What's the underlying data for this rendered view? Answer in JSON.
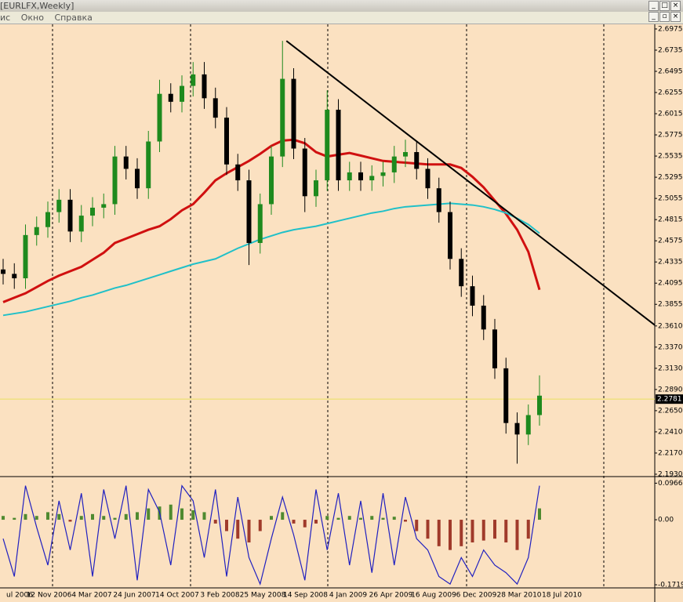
{
  "window": {
    "title": "[EURLFX,Weekly]",
    "menu": [
      "ис",
      "Окно",
      "Справка"
    ]
  },
  "chart_data": {
    "type": "candlestick",
    "background": "#fbe1c1",
    "bull_color": "#1e8a1e",
    "bear_color": "#000000",
    "ylim": [
      2.1912,
      2.7019
    ],
    "yticks": [
      2.6975,
      2.6735,
      2.6495,
      2.6255,
      2.6015,
      2.5775,
      2.5535,
      2.5295,
      2.5055,
      2.4815,
      2.4575,
      2.4335,
      2.4095,
      2.3855,
      {
        "value": 2.361,
        "label": "2.3610"
      },
      {
        "value": 2.337,
        "label": "2.3370"
      },
      {
        "value": 2.313,
        "label": "2.3130"
      },
      {
        "value": 2.289,
        "label": "2.2890"
      },
      {
        "value": 2.265,
        "label": "2.2650"
      },
      {
        "value": 2.241,
        "label": "2.2410"
      },
      {
        "value": 2.217,
        "label": "2.2170"
      },
      {
        "value": 2.193,
        "label": "2.1930"
      }
    ],
    "xlabels": [
      "ul 2006",
      "12 Nov 2006",
      "4 Mar 2007",
      "24 Jun 2007",
      "14 Oct 2007",
      "3 Feb 2008",
      "25 May 2008",
      "14 Sep 2008",
      "4 Jan 2009",
      "26 Apr 2009",
      "16 Aug 2009",
      "6 Dec 2009",
      "28 Mar 2010",
      "18 Jul 2010"
    ],
    "open": [
      2.425,
      2.42,
      2.415,
      2.464,
      2.473,
      2.49,
      2.504,
      2.468,
      2.486,
      2.495,
      2.499,
      2.553,
      2.539,
      2.517,
      2.57,
      2.624,
      2.615,
      2.633,
      2.646,
      2.619,
      2.597,
      2.544,
      2.526,
      2.455,
      2.499,
      2.553,
      2.641,
      2.562,
      2.508,
      2.526,
      2.606,
      2.526,
      2.535,
      2.526,
      2.531,
      2.535,
      2.553,
      2.558,
      2.539,
      2.517,
      2.49,
      2.437,
      2.406,
      2.384,
      2.357,
      2.313,
      2.251,
      2.238,
      2.26
    ],
    "high": [
      2.437,
      2.432,
      2.476,
      2.485,
      2.502,
      2.516,
      2.516,
      2.498,
      2.507,
      2.511,
      2.565,
      2.565,
      2.551,
      2.582,
      2.64,
      2.636,
      2.645,
      2.66,
      2.66,
      2.631,
      2.609,
      2.556,
      2.538,
      2.511,
      2.565,
      2.684,
      2.653,
      2.574,
      2.538,
      2.628,
      2.618,
      2.547,
      2.547,
      2.543,
      2.547,
      2.565,
      2.572,
      2.57,
      2.551,
      2.529,
      2.502,
      2.449,
      2.418,
      2.396,
      2.369,
      2.325,
      2.263,
      2.272,
      2.305
    ],
    "low": [
      2.408,
      2.403,
      2.403,
      2.452,
      2.461,
      2.478,
      2.456,
      2.456,
      2.474,
      2.483,
      2.487,
      2.527,
      2.505,
      2.505,
      2.558,
      2.603,
      2.603,
      2.621,
      2.607,
      2.585,
      2.532,
      2.514,
      2.43,
      2.443,
      2.487,
      2.541,
      2.55,
      2.49,
      2.496,
      2.514,
      2.514,
      2.514,
      2.514,
      2.514,
      2.519,
      2.523,
      2.541,
      2.527,
      2.505,
      2.478,
      2.425,
      2.394,
      2.372,
      2.345,
      2.301,
      2.239,
      2.205,
      2.226,
      2.248
    ],
    "close": [
      2.42,
      2.415,
      2.464,
      2.473,
      2.49,
      2.504,
      2.468,
      2.486,
      2.495,
      2.499,
      2.553,
      2.539,
      2.517,
      2.57,
      2.624,
      2.615,
      2.633,
      2.646,
      2.619,
      2.597,
      2.544,
      2.526,
      2.455,
      2.499,
      2.553,
      2.641,
      2.562,
      2.508,
      2.526,
      2.606,
      2.526,
      2.535,
      2.526,
      2.531,
      2.535,
      2.553,
      2.558,
      2.539,
      2.517,
      2.49,
      2.437,
      2.406,
      2.384,
      2.357,
      2.313,
      2.251,
      2.238,
      2.26,
      2.282
    ],
    "lines": [
      {
        "color": "#d01010",
        "width": 3,
        "values": [
          2.388,
          2.393,
          2.398,
          2.405,
          2.412,
          2.418,
          2.423,
          2.428,
          2.436,
          2.444,
          2.455,
          2.46,
          2.465,
          2.47,
          2.474,
          2.482,
          2.492,
          2.499,
          2.512,
          2.526,
          2.534,
          2.541,
          2.548,
          2.556,
          2.565,
          2.571,
          2.572,
          2.568,
          2.558,
          2.553,
          2.555,
          2.557,
          2.554,
          2.551,
          2.548,
          2.547,
          2.546,
          2.545,
          2.544,
          2.544,
          2.544,
          2.54,
          2.53,
          2.518,
          2.503,
          2.488,
          2.47,
          2.445,
          2.402
        ]
      },
      {
        "color": "#20c0c8",
        "width": 2,
        "values": [
          2.373,
          2.375,
          2.377,
          2.38,
          2.383,
          2.386,
          2.389,
          2.393,
          2.396,
          2.4,
          2.404,
          2.407,
          2.411,
          2.415,
          2.419,
          2.423,
          2.427,
          2.431,
          2.434,
          2.437,
          2.443,
          2.449,
          2.454,
          2.459,
          2.463,
          2.467,
          2.47,
          2.472,
          2.474,
          2.477,
          2.48,
          2.483,
          2.486,
          2.489,
          2.491,
          2.494,
          2.496,
          2.497,
          2.498,
          2.499,
          2.5,
          2.499,
          2.498,
          2.496,
          2.493,
          2.489,
          2.483,
          2.476,
          2.466
        ]
      }
    ],
    "trendline": {
      "color": "#000000",
      "values": [
        2.684,
        2.362
      ]
    },
    "current_price": {
      "value": 2.2781,
      "label": "2.2781",
      "color": "#e8e060"
    },
    "oscillator": {
      "ylim": [
        -0.176,
        0.112
      ],
      "yticks": [
        0.09663,
        {
          "value": 0,
          "label": "0.00"
        },
        -0.17191
      ],
      "line_color": "#2020c0",
      "pos_color": "#4f8a30",
      "neg_color": "#a03a2a",
      "line": [
        -0.05,
        -0.15,
        0.09,
        -0.02,
        -0.12,
        0.05,
        -0.08,
        0.07,
        -0.15,
        0.08,
        -0.05,
        0.09,
        -0.16,
        0.08,
        0.02,
        -0.12,
        0.09,
        0.05,
        -0.1,
        0.08,
        -0.15,
        0.06,
        -0.1,
        -0.17,
        -0.05,
        0.06,
        -0.04,
        -0.16,
        0.08,
        -0.08,
        0.07,
        -0.12,
        0.05,
        -0.14,
        0.07,
        -0.12,
        0.06,
        -0.05,
        -0.08,
        -0.15,
        -0.17,
        -0.1,
        -0.15,
        -0.08,
        -0.12,
        -0.14,
        -0.17,
        -0.1,
        0.09
      ],
      "histogram": [
        0.01,
        0.005,
        0.015,
        0.01,
        0.02,
        0.015,
        -0.005,
        0.01,
        0.015,
        0.01,
        0.005,
        0.015,
        0.02,
        0.03,
        0.035,
        0.04,
        0.03,
        0.025,
        0.02,
        -0.01,
        -0.03,
        -0.05,
        -0.06,
        -0.03,
        0.01,
        0.02,
        -0.01,
        -0.02,
        -0.01,
        0.01,
        0.005,
        0.01,
        0.005,
        0.01,
        0.005,
        0.008,
        -0.005,
        -0.03,
        -0.05,
        -0.07,
        -0.08,
        -0.07,
        -0.06,
        -0.055,
        -0.05,
        -0.06,
        -0.08,
        -0.05,
        0.03
      ]
    }
  }
}
